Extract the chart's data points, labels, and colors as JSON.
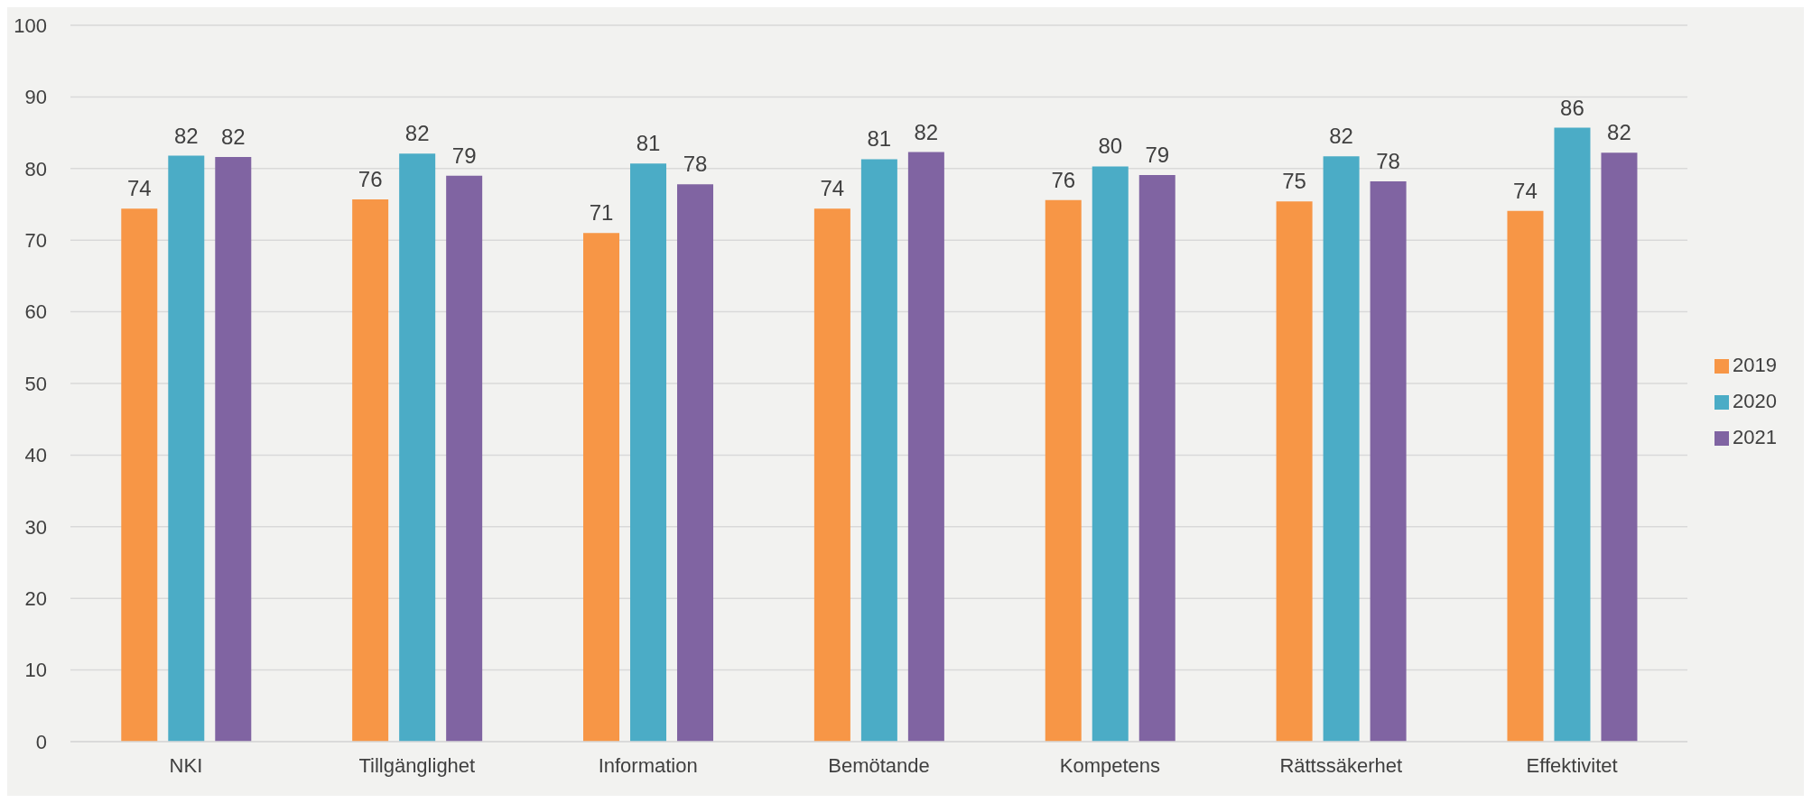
{
  "chart_data": {
    "type": "bar",
    "categories": [
      "NKI",
      "Tillgänglighet",
      "Information",
      "Bemötande",
      "Kompetens",
      "Rättssäkerhet",
      "Effektivitet"
    ],
    "series": [
      {
        "name": "2019",
        "color": "#f79646",
        "values": [
          74.4,
          75.7,
          71.0,
          74.4,
          75.6,
          75.4,
          74.1
        ],
        "value_labels": [
          "74",
          "76",
          "71",
          "74",
          "76",
          "75",
          "74"
        ]
      },
      {
        "name": "2020",
        "color": "#4bacc6",
        "values": [
          81.8,
          82.1,
          80.7,
          81.3,
          80.3,
          81.7,
          85.7
        ],
        "value_labels": [
          "82",
          "82",
          "81",
          "81",
          "80",
          "82",
          "86"
        ]
      },
      {
        "name": "2021",
        "color": "#8064a2",
        "values": [
          81.6,
          79.0,
          77.8,
          82.3,
          79.1,
          78.2,
          82.2
        ],
        "value_labels": [
          "82",
          "79",
          "78",
          "82",
          "79",
          "78",
          "82"
        ]
      }
    ],
    "ylim": [
      0,
      100
    ],
    "yticks": [
      0,
      10,
      20,
      30,
      40,
      50,
      60,
      70,
      80,
      90,
      100
    ],
    "grid": "y",
    "legend": "right"
  }
}
